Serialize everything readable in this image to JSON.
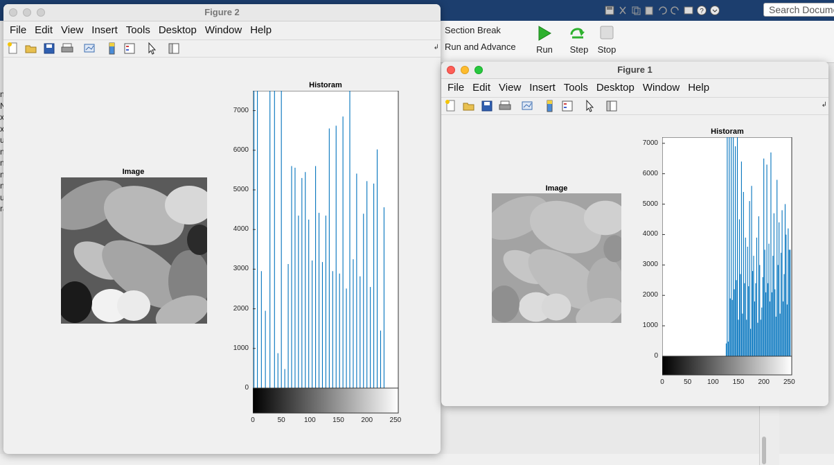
{
  "toolstrip": {
    "section_break": "Section Break",
    "run_and_advance": "Run and Advance",
    "run": "Run",
    "step": "Step",
    "stop": "Stop",
    "search_placeholder": "Search Documentation"
  },
  "left_strip_letters": [
    "n",
    "N",
    "x",
    "x",
    "ui",
    "n",
    "n",
    "n",
    "n",
    "ue",
    "ra"
  ],
  "menus": [
    "File",
    "Edit",
    "View",
    "Insert",
    "Tools",
    "Desktop",
    "Window",
    "Help"
  ],
  "figure2": {
    "title": "Figure 2",
    "image_title": "Image",
    "hist_title": "Historam",
    "y_ticks": [
      "7000",
      "6000",
      "5000",
      "4000",
      "3000",
      "2000",
      "1000",
      "0"
    ],
    "x_ticks": [
      "0",
      "50",
      "100",
      "150",
      "200",
      "250"
    ]
  },
  "figure1": {
    "title": "Figure 1",
    "image_title": "Image",
    "hist_title": "Historam",
    "y_ticks": [
      "7000",
      "6000",
      "5000",
      "4000",
      "3000",
      "2000",
      "1000",
      "0"
    ],
    "x_ticks": [
      "0",
      "50",
      "100",
      "150",
      "200",
      "250"
    ]
  },
  "colors": {
    "bar": "#0072bd",
    "desk_blue": "#1c3e6e",
    "run_green": "#2fb12f"
  },
  "chart_data": [
    {
      "type": "bar",
      "title": "Historam",
      "xlim": [
        0,
        255
      ],
      "ylim": [
        0,
        7500
      ],
      "series": [
        {
          "x": [
            2,
            8,
            15,
            22,
            30,
            38,
            44,
            50,
            56,
            62,
            68,
            74,
            80,
            86,
            92,
            98,
            104,
            110,
            116,
            122,
            128,
            134,
            140,
            146,
            152,
            158,
            164,
            170,
            176,
            182,
            188,
            194,
            200,
            206,
            212,
            218,
            224,
            230
          ],
          "values": [
            7500,
            7500,
            2950,
            1950,
            7500,
            7500,
            880,
            7500,
            480,
            3130,
            5600,
            5560,
            4350,
            5300,
            5450,
            4250,
            3220,
            5600,
            4420,
            3180,
            4350,
            6550,
            2950,
            6620,
            2890,
            6850,
            2510,
            7500,
            3250,
            5410,
            2820,
            4400,
            5220,
            2550,
            5160,
            6020,
            1450,
            4560
          ]
        }
      ]
    },
    {
      "type": "bar",
      "title": "Historam",
      "xlim": [
        0,
        255
      ],
      "ylim": [
        0,
        7200
      ],
      "series": [
        {
          "x": [
            126,
            128,
            130,
            132,
            134,
            136,
            138,
            140,
            142,
            144,
            146,
            148,
            150,
            152,
            154,
            156,
            158,
            160,
            162,
            164,
            166,
            168,
            170,
            172,
            174,
            176,
            178,
            180,
            182,
            184,
            186,
            188,
            190,
            192,
            194,
            196,
            198,
            200,
            202,
            204,
            206,
            208,
            210,
            212,
            214,
            216,
            218,
            220,
            222,
            224,
            226,
            228,
            230,
            232,
            234,
            236,
            238,
            240,
            242,
            244,
            246,
            248,
            250,
            252
          ],
          "values": [
            420,
            7200,
            480,
            7200,
            1900,
            7200,
            1850,
            7200,
            2200,
            6900,
            2500,
            7200,
            1200,
            4500,
            2700,
            6400,
            1400,
            5400,
            2400,
            3900,
            1200,
            3600,
            2300,
            5100,
            900,
            5600,
            2800,
            3300,
            1800,
            2400,
            3900,
            1100,
            4600,
            3000,
            1200,
            1600,
            2600,
            6500,
            3500,
            2100,
            6300,
            2400,
            3700,
            1800,
            6700,
            2100,
            3300,
            4700,
            2200,
            1300,
            5800,
            3000,
            4400,
            1400,
            3400,
            4800,
            1800,
            2700,
            5000,
            4000,
            1700,
            4200,
            3500,
            3500
          ]
        }
      ]
    }
  ]
}
